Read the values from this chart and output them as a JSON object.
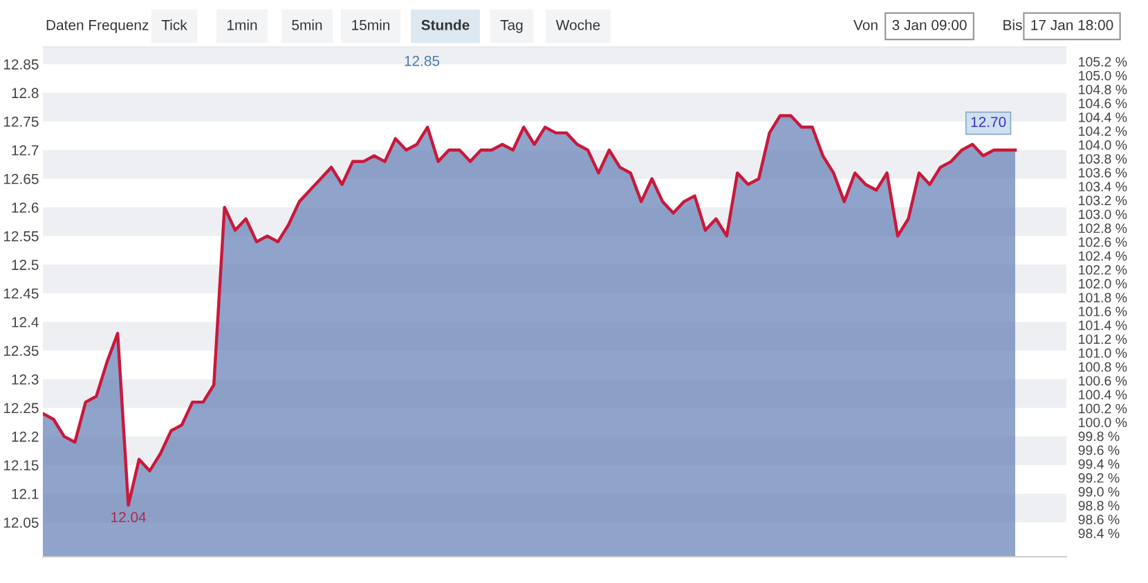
{
  "chart_data": {
    "type": "area",
    "categories": [
      null,
      null,
      null,
      null,
      null,
      null,
      null,
      null,
      null,
      null,
      null,
      null,
      null,
      null,
      null,
      null,
      null,
      null,
      null,
      null,
      null,
      null,
      null,
      null,
      null,
      null,
      null,
      null,
      null,
      null,
      null,
      null,
      null,
      null,
      null,
      null,
      null,
      null,
      null,
      null,
      null,
      null,
      null,
      null,
      null,
      null,
      null,
      null,
      null,
      null,
      null,
      null,
      null,
      null,
      null,
      null,
      null,
      null,
      null,
      null,
      null,
      null,
      null,
      null,
      null,
      null,
      null,
      null,
      null,
      null,
      null,
      null,
      null,
      null,
      null,
      null,
      null,
      null,
      null,
      null,
      null,
      null,
      null,
      null,
      null,
      null,
      null,
      null,
      null,
      null,
      null,
      null
    ],
    "series": [
      {
        "type": "line",
        "color": "#c8193c",
        "values": [
          12.24,
          12.23,
          12.2,
          12.19,
          12.26,
          12.27,
          12.33,
          12.38,
          12.08,
          12.16,
          12.14,
          12.17,
          12.21,
          12.22,
          12.26,
          12.26,
          12.29,
          12.6,
          12.56,
          12.58,
          12.54,
          12.55,
          12.54,
          12.57,
          12.61,
          12.63,
          12.65,
          12.67,
          12.64,
          12.68,
          12.68,
          12.69,
          12.68,
          12.72,
          12.7,
          12.71,
          12.74,
          12.68,
          12.7,
          12.7,
          12.68,
          12.7,
          12.7,
          12.71,
          12.7,
          12.74,
          12.71,
          12.74,
          12.73,
          12.73,
          12.71,
          12.7,
          12.66,
          12.7,
          12.67,
          12.66,
          12.61,
          12.65,
          12.61,
          12.59,
          12.61,
          12.62,
          12.56,
          12.58,
          12.55,
          12.66,
          12.64,
          12.65,
          12.73,
          12.76,
          12.76,
          12.74,
          12.74,
          12.69,
          12.66,
          12.61,
          12.66,
          12.64,
          12.63,
          12.66,
          12.55,
          12.58,
          12.66,
          12.64,
          12.67,
          12.68,
          12.7,
          12.71,
          12.69,
          12.7,
          12.7,
          12.7
        ]
      },
      {
        "color": "#6b84b8",
        "values": [
          12.24,
          12.23,
          12.2,
          12.19,
          12.26,
          12.27,
          12.33,
          12.38,
          12.08,
          12.16,
          12.14,
          12.17,
          12.21,
          12.22,
          12.26,
          12.26,
          12.29,
          12.6,
          12.56,
          12.58,
          12.54,
          12.55,
          12.54,
          12.57,
          12.61,
          12.63,
          12.65,
          12.67,
          12.64,
          12.68,
          12.68,
          12.69,
          12.68,
          12.72,
          12.7,
          12.71,
          12.74,
          12.68,
          12.7,
          12.7,
          12.68,
          12.7,
          12.7,
          12.71,
          12.7,
          12.74,
          12.71,
          12.74,
          12.73,
          12.73,
          12.71,
          12.7,
          12.66,
          12.7,
          12.67,
          12.66,
          12.61,
          12.65,
          12.61,
          12.59,
          12.61,
          12.62,
          12.56,
          12.58,
          12.55,
          12.66,
          12.64,
          12.65,
          12.73,
          12.76,
          12.76,
          12.74,
          12.74,
          12.69,
          12.66,
          12.61,
          12.66,
          12.64,
          12.63,
          12.66,
          12.55,
          12.58,
          12.66,
          12.64,
          12.67,
          12.68,
          12.7,
          12.71,
          12.69,
          12.7,
          12.7,
          12.7
        ]
      }
    ],
    "ylim": [
      11.99,
      12.88
    ],
    "yticks": [
      12.05,
      12.1,
      12.15,
      12.2,
      12.25,
      12.3,
      12.35,
      12.4,
      12.45,
      12.5,
      12.55,
      12.6,
      12.65,
      12.7,
      12.75,
      12.8,
      12.85
    ],
    "y2lim": [
      98.06,
      105.41
    ],
    "y2ticks": [
      {
        "value": 98.4,
        "label": "98.4 %"
      },
      {
        "value": 98.6,
        "label": "98.6 %"
      },
      {
        "value": 98.8,
        "label": "98.8 %"
      },
      {
        "value": 99.0,
        "label": "99.0 %"
      },
      {
        "value": 99.2,
        "label": "99.2 %"
      },
      {
        "value": 99.4,
        "label": "99.4 %"
      },
      {
        "value": 99.6,
        "label": "99.6 %"
      },
      {
        "value": 99.8,
        "label": "99.8 %"
      },
      {
        "value": 100.0,
        "label": "100.0 %"
      },
      {
        "value": 100.2,
        "label": "100.2 %"
      },
      {
        "value": 100.4,
        "label": "100.4 %"
      },
      {
        "value": 100.6,
        "label": "100.6 %"
      },
      {
        "value": 100.8,
        "label": "100.8 %"
      },
      {
        "value": 101.0,
        "label": "101.0 %"
      },
      {
        "value": 101.2,
        "label": "101.2 %"
      },
      {
        "value": 101.4,
        "label": "101.4 %"
      },
      {
        "value": 101.6,
        "label": "101.6 %"
      },
      {
        "value": 101.8,
        "label": "101.8 %"
      },
      {
        "value": 102.0,
        "label": "102.0 %"
      },
      {
        "value": 102.2,
        "label": "102.2 %"
      },
      {
        "value": 102.4,
        "label": "102.4 %"
      },
      {
        "value": 102.6,
        "label": "102.6 %"
      },
      {
        "value": 102.8,
        "label": "102.8 %"
      },
      {
        "value": 103.0,
        "label": "103.0 %"
      },
      {
        "value": 103.2,
        "label": "103.2 %"
      },
      {
        "value": 103.4,
        "label": "103.4 %"
      },
      {
        "value": 103.6,
        "label": "103.6 %"
      },
      {
        "value": 103.8,
        "label": "103.8 %"
      },
      {
        "value": 104.0,
        "label": "104.0 %"
      },
      {
        "value": 104.2,
        "label": "104.2 %"
      },
      {
        "value": 104.4,
        "label": "104.4 %"
      },
      {
        "value": 104.6,
        "label": "104.6 %"
      },
      {
        "value": 104.8,
        "label": "104.8 %"
      },
      {
        "value": 105.0,
        "label": "105.0 %"
      },
      {
        "value": 105.2,
        "label": "105.2 %"
      }
    ],
    "annotations": [
      "Daten Frequenz",
      "Tick",
      "1min",
      "5min",
      "15min",
      "Stunde",
      "Tag",
      "Woche",
      "Von",
      "3 Jan 09:00",
      "Bis",
      "17 Jan 18:00",
      "12.85",
      "12.04",
      {
        "text": "12.70",
        "y": 12.7
      }
    ]
  }
}
